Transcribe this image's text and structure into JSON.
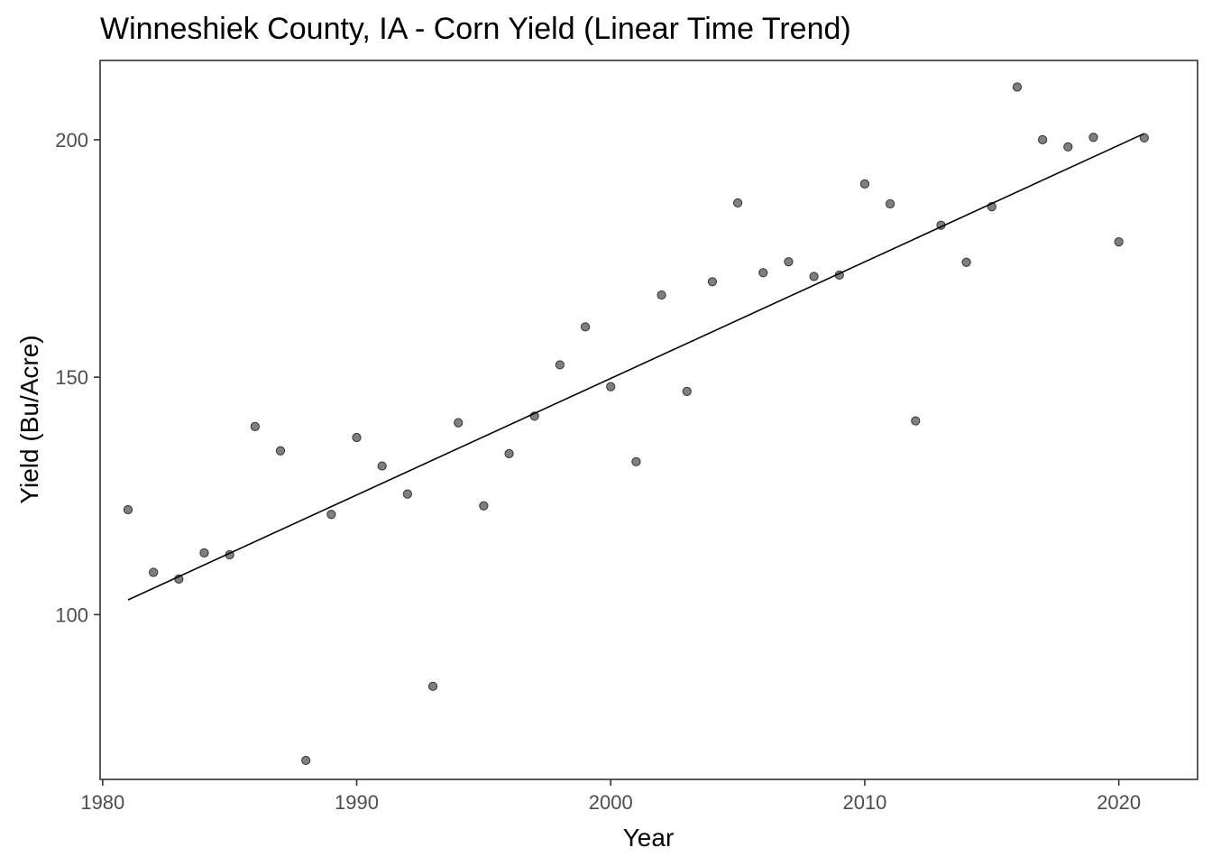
{
  "chart_data": {
    "type": "scatter",
    "title": "Winneshiek County, IA - Corn Yield (Linear Time Trend)",
    "xlabel": "Year",
    "ylabel": "Yield (Bu/Acre)",
    "xlim": [
      1979.9,
      2023.1
    ],
    "ylim": [
      65.3,
      216.7
    ],
    "x_ticks": [
      1980,
      1990,
      2000,
      2010,
      2020
    ],
    "x_tick_labels": [
      "1980",
      "1990",
      "2000",
      "2010",
      "2020"
    ],
    "y_ticks": [
      100,
      150,
      200
    ],
    "y_tick_labels": [
      "100",
      "150",
      "200"
    ],
    "grid": false,
    "legend": "none",
    "series": [
      {
        "type": "scatter",
        "x": [
          1981,
          1982,
          1983,
          1984,
          1985,
          1986,
          1987,
          1988,
          1989,
          1990,
          1991,
          1992,
          1993,
          1994,
          1995,
          1996,
          1997,
          1998,
          1999,
          2000,
          2001,
          2002,
          2003,
          2004,
          2005,
          2006,
          2007,
          2008,
          2009,
          2010,
          2011,
          2012,
          2013,
          2014,
          2015,
          2016,
          2017,
          2018,
          2019,
          2020,
          2021
        ],
        "values": [
          122.1,
          108.9,
          107.5,
          113.0,
          112.6,
          139.6,
          134.5,
          69.3,
          121.1,
          137.3,
          131.3,
          125.4,
          84.9,
          140.4,
          122.9,
          133.9,
          141.8,
          152.6,
          160.6,
          148.0,
          132.2,
          167.3,
          147.0,
          170.1,
          186.7,
          172.0,
          174.3,
          171.2,
          171.5,
          190.7,
          186.5,
          140.8,
          182.0,
          174.2,
          185.9,
          211.1,
          200.0,
          198.5,
          200.5,
          178.5,
          200.4
        ],
        "color": "#7f7f7f",
        "stroke": "#333333"
      },
      {
        "type": "line",
        "x": [
          1981,
          2021
        ],
        "values": [
          103.1,
          201.3
        ],
        "color": "#000000"
      }
    ]
  }
}
